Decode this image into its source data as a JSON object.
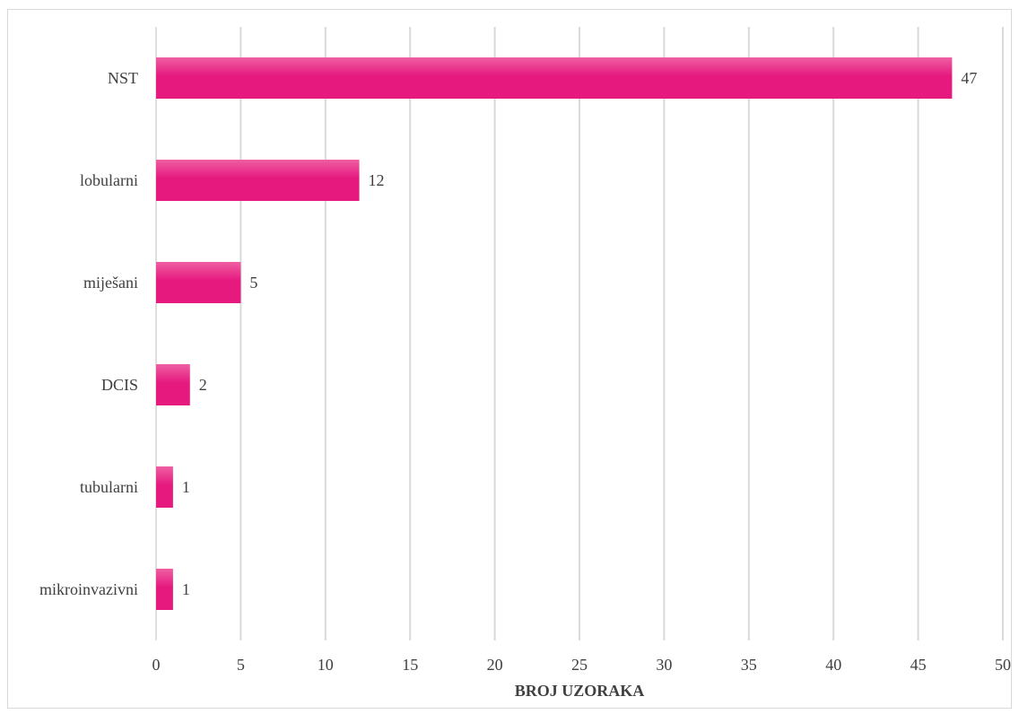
{
  "chart_data": {
    "type": "bar",
    "orientation": "horizontal",
    "categories": [
      "NST",
      "lobularni",
      "miješani",
      "DCIS",
      "tubularni",
      "mikroinvazivni"
    ],
    "values": [
      47,
      12,
      5,
      2,
      1,
      1
    ],
    "data_labels": [
      "47",
      "12",
      "5",
      "2",
      "1",
      "1"
    ],
    "xlabel": "BROJ UZORAKA",
    "ylabel": "",
    "xlim": [
      0,
      50
    ],
    "x_ticks": [
      0,
      5,
      10,
      15,
      20,
      25,
      30,
      35,
      40,
      45,
      50
    ],
    "x_tick_labels": [
      "0",
      "5",
      "10",
      "15",
      "20",
      "25",
      "30",
      "35",
      "40",
      "45",
      "50"
    ],
    "grid": "vertical",
    "legend": "none",
    "bar_color": "#e6197f",
    "bar_color_light": "#ef5fa3"
  }
}
